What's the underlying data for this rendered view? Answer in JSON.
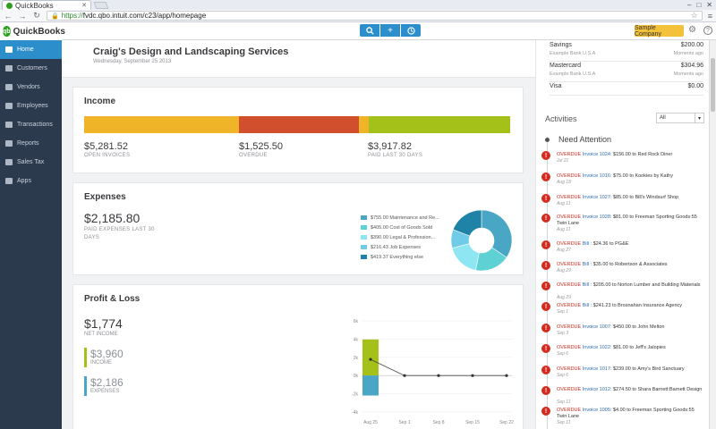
{
  "browser": {
    "tab_title": "QuickBooks",
    "url_scheme": "https://",
    "url_rest": "fvdc.qbo.intuit.com/c23/app/homepage"
  },
  "header": {
    "logo_text": "QuickBooks",
    "sample_company_label": "Sample Company"
  },
  "sidebar": {
    "items": [
      {
        "label": "Home",
        "icon": "home-icon"
      },
      {
        "label": "Customers",
        "icon": "customers-icon"
      },
      {
        "label": "Vendors",
        "icon": "vendors-icon"
      },
      {
        "label": "Employees",
        "icon": "employees-icon"
      },
      {
        "label": "Transactions",
        "icon": "transactions-icon"
      },
      {
        "label": "Reports",
        "icon": "reports-icon"
      },
      {
        "label": "Sales Tax",
        "icon": "sales-tax-icon"
      },
      {
        "label": "Apps",
        "icon": "apps-icon"
      }
    ]
  },
  "company": {
    "name": "Craig's Design and Landscaping Services",
    "date": "Wednesday, September 25 2013"
  },
  "income": {
    "title": "Income",
    "items": [
      {
        "value": "$5,281.52",
        "label": "OPEN INVOICES"
      },
      {
        "value": "$1,525.50",
        "label": "OVERDUE"
      },
      {
        "value": "$3,917.82",
        "label": "PAID LAST 30 DAYS"
      }
    ],
    "bar": [
      {
        "fraction": 0.363,
        "color": "#f0b429"
      },
      {
        "fraction": 0.281,
        "color": "#d24f2d"
      },
      {
        "fraction": 0.024,
        "color": "#f0b429"
      },
      {
        "fraction": 0.332,
        "color": "#a3c118"
      }
    ]
  },
  "expenses": {
    "title": "Expenses",
    "total": "$2,185.80",
    "sub_label": "PAID EXPENSES LAST 30 DAYS",
    "legend": [
      {
        "label": "$755.00 Maintenance and Re...",
        "color": "#49a7c5",
        "value": 755.0
      },
      {
        "label": "$405.00 Cost of Goods Sold",
        "color": "#5dd1d3",
        "value": 405.0
      },
      {
        "label": "$390.00 Legal & Profession...",
        "color": "#8ee6f2",
        "value": 390.0
      },
      {
        "label": "$216.43 Job Expenses",
        "color": "#6fcbe8",
        "value": 216.43
      },
      {
        "label": "$419.37 Everything else",
        "color": "#1e83a6",
        "value": 419.37
      }
    ]
  },
  "profit_loss": {
    "title": "Profit & Loss",
    "net_income": "$1,774",
    "net_income_label": "NET INCOME",
    "income_value": "$3,960",
    "income_label": "INCOME",
    "expenses_value": "$2,186",
    "expenses_label": "EXPENSES",
    "colors": {
      "income": "#a3c118",
      "expenses": "#49a7c5"
    }
  },
  "chart_data": {
    "type": "bar",
    "categories": [
      "Aug 25",
      "Sep 1",
      "Sep 8",
      "Sep 15",
      "Sep 22"
    ],
    "series": [
      {
        "values": [
          3.96,
          0,
          0,
          0,
          0
        ]
      },
      {
        "values": [
          -2.19,
          0,
          0,
          0,
          0
        ]
      },
      {
        "values": [
          1.77,
          0,
          0,
          0,
          0
        ]
      }
    ],
    "y_ticks": [
      "6k",
      "4k",
      "2k",
      "0k",
      "-2k",
      "-4k"
    ],
    "ylim": [
      -4,
      6
    ]
  },
  "accounts": [
    {
      "name": "Savings",
      "amount": "$200.00",
      "bank": "Example Bank U.S.A",
      "updated": "Moments ago"
    },
    {
      "name": "Mastercard",
      "amount": "$304.96",
      "bank": "Example Bank U.S.A",
      "updated": "Moments ago"
    },
    {
      "name": "Visa",
      "amount": "$0.00",
      "bank": "",
      "updated": ""
    }
  ],
  "activities": {
    "title": "Activities",
    "filter": "All",
    "need_attention": "Need Attention",
    "items": [
      {
        "overdue": "OVERDUE",
        "link": "Invoice 1024:",
        "text": " $156.00 to Red Rock Diner",
        "date": "Jul 21"
      },
      {
        "overdue": "OVERDUE",
        "link": "Invoice 1016:",
        "text": " $75.00 to Kookies by Kathy",
        "date": "Aug 18"
      },
      {
        "overdue": "OVERDUE",
        "link": "Invoice 1027:",
        "text": " $85.00 to Bill's Windsurf Shop",
        "date": "Aug 11"
      },
      {
        "overdue": "OVERDUE",
        "link": "Invoice 1028:",
        "text": " $81.00 to Freeman Sporting Goods:55 Twin Lane",
        "date": "Aug 11"
      },
      {
        "overdue": "OVERDUE",
        "link": "Bill :",
        "text": " $24.36 to PG&E",
        "date": "Aug 27"
      },
      {
        "overdue": "OVERDUE",
        "link": "Bill :",
        "text": " $35.00 to Robertson & Associates",
        "date": "Aug 29"
      },
      {
        "overdue": "OVERDUE",
        "link": "Bill :",
        "text": " $205.00 to Norton Lumber and Building Materials",
        "date": "Aug 29"
      },
      {
        "overdue": "OVERDUE",
        "link": "Bill :",
        "text": " $241.23 to Brosnahan Insurance Agency",
        "date": "Sep 1"
      },
      {
        "overdue": "OVERDUE",
        "link": "Invoice 1007:",
        "text": " $450.00 to John Melton",
        "date": "Sep 3"
      },
      {
        "overdue": "OVERDUE",
        "link": "Invoice 1022:",
        "text": " $81.00 to Jeff's Jalopies",
        "date": "Sep 6"
      },
      {
        "overdue": "OVERDUE",
        "link": "Invoice 1017:",
        "text": " $239.00 to Amy's Bird Sanctuary",
        "date": "Sep 6"
      },
      {
        "overdue": "OVERDUE",
        "link": "Invoice 1012:",
        "text": " $274.50 to Shara Barnett:Barnett Design",
        "date": "Sep 11"
      },
      {
        "overdue": "OVERDUE",
        "link": "Invoice 1005:",
        "text": " $4.00 to Freeman Sporting Goods:55 Twin Lane",
        "date": "Sep 11"
      }
    ]
  }
}
